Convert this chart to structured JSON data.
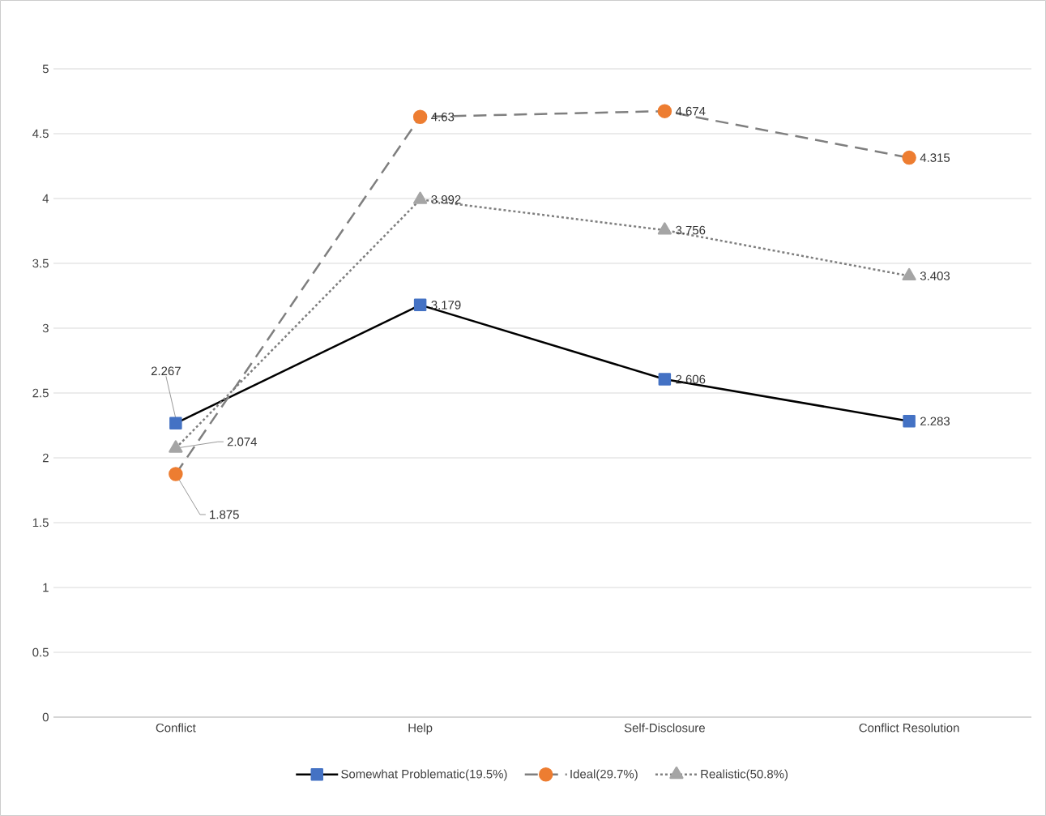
{
  "chart_data": {
    "type": "line",
    "categories": [
      "Conflict",
      "Help",
      "Self-Disclosure",
      "Conflict Resolution"
    ],
    "ylim": [
      0,
      5
    ],
    "yticks": [
      0,
      0.5,
      1,
      1.5,
      2,
      2.5,
      3,
      3.5,
      4,
      4.5,
      5
    ],
    "grid": "y",
    "legend": "bottom",
    "series": [
      {
        "name": "Somewhat Problematic(19.5%)",
        "color": "#4472c4",
        "marker": "square",
        "line_style": "solid",
        "values": [
          2.267,
          3.179,
          2.606,
          2.283
        ],
        "value_labels": [
          "2.267",
          "3.179",
          "2.606",
          "2.283"
        ]
      },
      {
        "name": "Ideal(29.7%)",
        "color": "#ed7d31",
        "marker": "circle",
        "line_style": "dashed",
        "values": [
          1.875,
          4.63,
          4.674,
          4.315
        ],
        "value_labels": [
          "1.875",
          "4.63",
          "4.674",
          "4.315"
        ]
      },
      {
        "name": "Realistic(50.8%)",
        "color": "#a5a5a5",
        "marker": "triangle",
        "line_style": "dotted",
        "values": [
          2.074,
          3.992,
          3.756,
          3.403
        ],
        "value_labels": [
          "2.074",
          "3.992",
          "3.756",
          "3.403"
        ]
      }
    ]
  }
}
